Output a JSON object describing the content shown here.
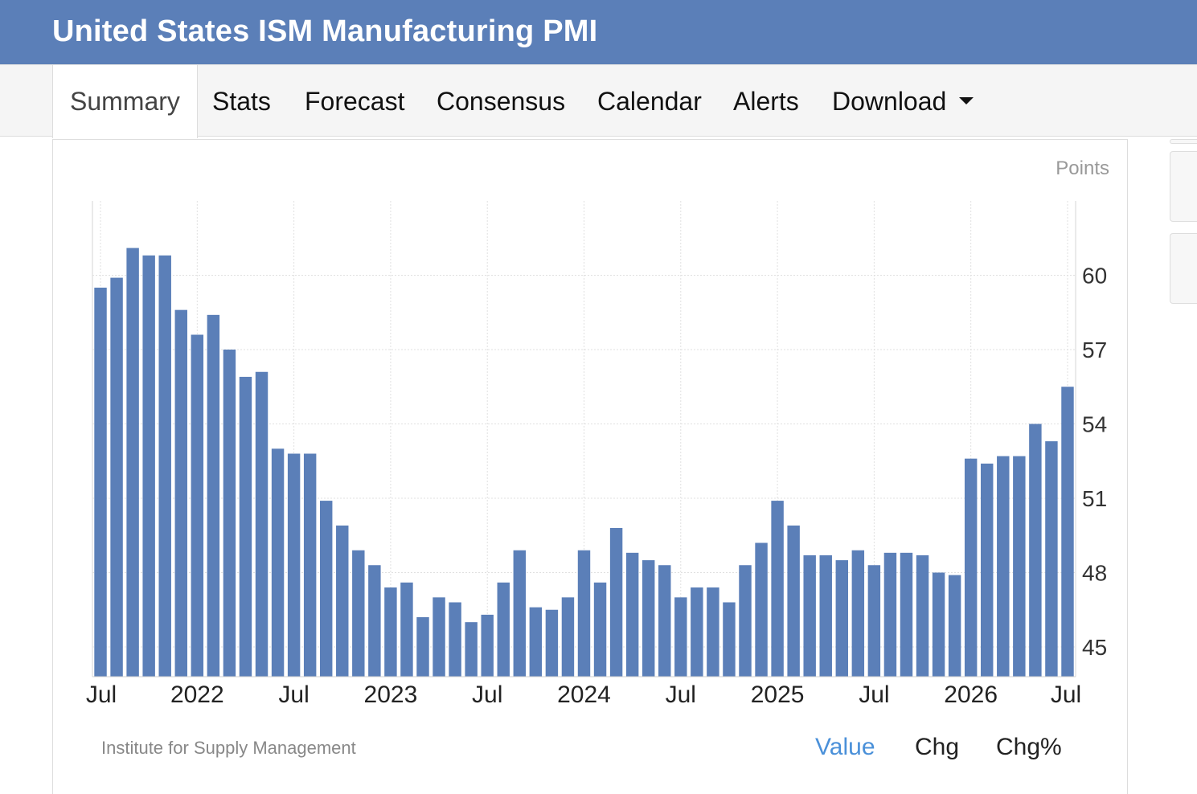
{
  "header": {
    "title": "United States ISM Manufacturing PMI"
  },
  "tabs": [
    {
      "label": "Summary",
      "active": true
    },
    {
      "label": "Stats"
    },
    {
      "label": "Forecast"
    },
    {
      "label": "Consensus"
    },
    {
      "label": "Calendar"
    },
    {
      "label": "Alerts"
    },
    {
      "label": "Download",
      "dropdown": true
    }
  ],
  "chart": {
    "units_label": "Points",
    "source": "Institute for Supply Management",
    "view_buttons": [
      {
        "label": "Value",
        "active": true
      },
      {
        "label": "Chg"
      },
      {
        "label": "Chg%"
      }
    ]
  },
  "colors": {
    "header": "#5b7fb8",
    "bar": "#5b7fb8",
    "active_link": "#4a90d9"
  },
  "chart_data": {
    "type": "bar",
    "y_axis_position": "right",
    "grid": true,
    "ylim": [
      43.8,
      63
    ],
    "yticks": [
      45,
      48,
      51,
      54,
      57,
      60
    ],
    "x_tick_labels": [
      {
        "label": "Jul",
        "index": 0
      },
      {
        "label": "2022",
        "index": 6
      },
      {
        "label": "Jul",
        "index": 12
      },
      {
        "label": "2023",
        "index": 18
      },
      {
        "label": "Jul",
        "index": 24
      },
      {
        "label": "2024",
        "index": 30
      },
      {
        "label": "Jul",
        "index": 36
      },
      {
        "label": "2025",
        "index": 42
      },
      {
        "label": "Jul",
        "index": 48
      },
      {
        "label": "2026",
        "index": 54
      },
      {
        "label": "Jul",
        "index": 60
      }
    ],
    "values": [
      59.5,
      59.9,
      61.1,
      60.8,
      60.8,
      58.6,
      57.6,
      58.4,
      57.0,
      55.9,
      56.1,
      53.0,
      52.8,
      52.8,
      50.9,
      49.9,
      48.9,
      48.3,
      47.4,
      47.6,
      46.2,
      47.0,
      46.8,
      46.0,
      46.3,
      47.6,
      48.9,
      46.6,
      46.5,
      47.0,
      48.9,
      47.6,
      49.8,
      48.8,
      48.5,
      48.3,
      47.0,
      47.4,
      47.4,
      46.8,
      48.3,
      49.2,
      50.9,
      49.9,
      48.7,
      48.7,
      48.5,
      48.9,
      48.3,
      48.8,
      48.8,
      48.7,
      48.0,
      47.9,
      52.6,
      52.4,
      52.7,
      52.7,
      54.0,
      53.3,
      55.5
    ]
  }
}
